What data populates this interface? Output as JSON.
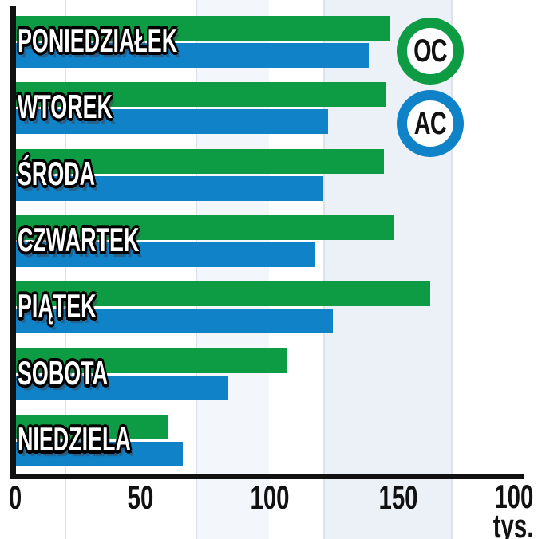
{
  "chart_data": {
    "type": "bar",
    "orientation": "horizontal",
    "title": "",
    "categories": [
      "PONIEDZIAŁEK",
      "WTOREK",
      "ŚRODA",
      "CZWARTEK",
      "PIĄTEK",
      "SOBOTA",
      "NIEDZIELA"
    ],
    "series": [
      {
        "name": "OC",
        "color": "#0d9b44",
        "values": [
          147,
          146,
          145,
          149,
          163,
          107,
          60
        ]
      },
      {
        "name": "AC",
        "color": "#0f82c8",
        "values": [
          139,
          123,
          121,
          118,
          125,
          84,
          66
        ]
      }
    ],
    "xlim": [
      0,
      200
    ],
    "x_tick_labels": [
      "0",
      "50",
      "100",
      "150"
    ],
    "x_end_label": "100",
    "x_unit_label": "tys.",
    "grid": "faint vertical stripes",
    "legend_position": "top-right"
  },
  "legend": {
    "oc_label": "OC",
    "ac_label": "AC",
    "oc_color": "#0d9b44",
    "ac_color": "#0f82c8"
  },
  "x_axis": {
    "ticks": {
      "0": "0",
      "1": "50",
      "2": "100",
      "3": "150"
    },
    "end_value": "100",
    "end_unit": "tys."
  }
}
